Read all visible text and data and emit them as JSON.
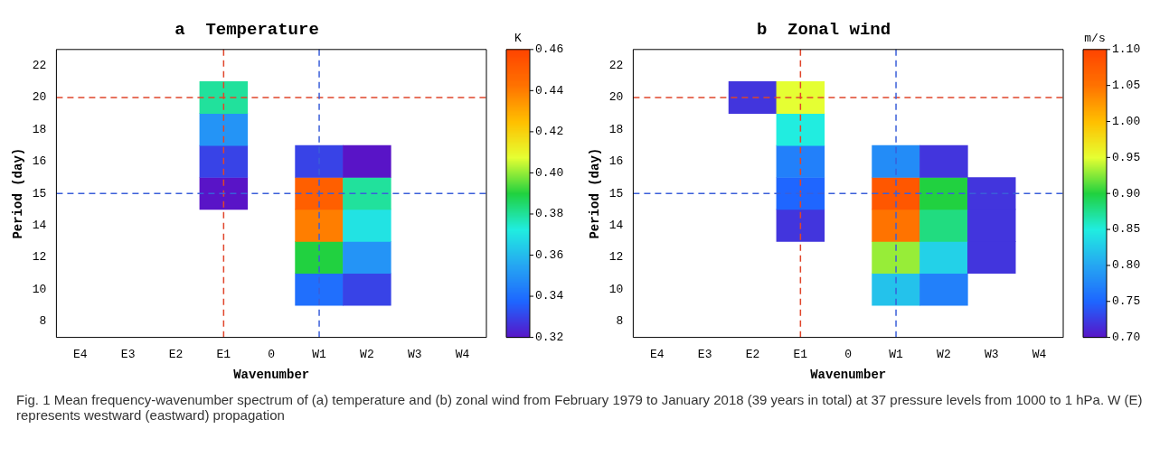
{
  "chart_data": [
    {
      "type": "heatmap",
      "title": "a  Temperature",
      "xlabel": "Wavenumber",
      "ylabel": "Period (day)",
      "clabel": "K",
      "categories": [
        "E4",
        "E3",
        "E2",
        "E1",
        "0",
        "W1",
        "W2",
        "W3",
        "W4"
      ],
      "y_categories": [
        "22",
        "20",
        "18",
        "16",
        "15",
        "14",
        "12",
        "10",
        "8"
      ],
      "cells": [
        [
          null,
          null,
          null,
          null,
          null,
          null,
          null,
          null,
          null
        ],
        [
          null,
          null,
          null,
          0.38,
          null,
          null,
          null,
          null,
          null
        ],
        [
          null,
          null,
          null,
          0.35,
          null,
          null,
          null,
          null,
          null
        ],
        [
          null,
          null,
          null,
          0.33,
          null,
          0.33,
          0.32,
          null,
          null
        ],
        [
          null,
          null,
          null,
          0.32,
          null,
          0.45,
          0.38,
          null,
          null
        ],
        [
          null,
          null,
          null,
          null,
          null,
          0.44,
          0.37,
          null,
          null
        ],
        [
          null,
          null,
          null,
          null,
          null,
          0.39,
          0.35,
          null,
          null
        ],
        [
          null,
          null,
          null,
          null,
          null,
          0.34,
          0.33,
          null,
          null
        ],
        [
          null,
          null,
          null,
          null,
          null,
          null,
          null,
          null,
          null
        ]
      ],
      "clim": [
        0.32,
        0.46
      ],
      "cticks": [
        {
          "value": 0.32,
          "label": "0.32"
        },
        {
          "value": 0.34,
          "label": "0.34"
        },
        {
          "value": 0.36,
          "label": "0.36"
        },
        {
          "value": 0.38,
          "label": "0.38"
        },
        {
          "value": 0.4,
          "label": "0.40"
        },
        {
          "value": 0.42,
          "label": "0.42"
        },
        {
          "value": 0.44,
          "label": "0.44"
        },
        {
          "value": 0.46,
          "label": "0.46"
        }
      ],
      "ref_lines": [
        {
          "axis": "y",
          "value": "20",
          "color": "#e0452b",
          "line_style": "dashed"
        },
        {
          "axis": "x",
          "value": "E1",
          "color": "#e0452b",
          "line_style": "dashed"
        },
        {
          "axis": "y",
          "value": "15",
          "color": "#3a5fd9",
          "line_style": "dashed"
        },
        {
          "axis": "x",
          "value": "W1",
          "color": "#3a5fd9",
          "line_style": "dashed"
        }
      ],
      "annotations": [
        "Fig. 1 Mean frequency-wavenumber spectrum of (a) temperature and (b) zonal wind from February 1979 to January 2018 (39 years in total) at 37 pressure levels from 1000 to 1 hPa. W (E) represents westward (eastward) propagation"
      ]
    },
    {
      "type": "heatmap",
      "title": "b  Zonal wind",
      "xlabel": "Wavenumber",
      "ylabel": "Period (day)",
      "clabel": "m/s",
      "categories": [
        "E4",
        "E3",
        "E2",
        "E1",
        "0",
        "W1",
        "W2",
        "W3",
        "W4"
      ],
      "y_categories": [
        "22",
        "20",
        "18",
        "16",
        "15",
        "14",
        "12",
        "10",
        "8"
      ],
      "cells": [
        [
          null,
          null,
          null,
          null,
          null,
          null,
          null,
          null,
          null
        ],
        [
          null,
          null,
          0.72,
          0.95,
          null,
          null,
          null,
          null,
          null
        ],
        [
          null,
          null,
          null,
          0.85,
          null,
          null,
          null,
          null,
          null
        ],
        [
          null,
          null,
          null,
          0.77,
          null,
          0.78,
          0.72,
          null,
          null
        ],
        [
          null,
          null,
          null,
          0.75,
          null,
          1.08,
          0.9,
          0.72,
          null
        ],
        [
          null,
          null,
          null,
          0.72,
          null,
          1.05,
          0.88,
          0.72,
          null
        ],
        [
          null,
          null,
          null,
          null,
          null,
          0.93,
          0.83,
          0.72,
          null
        ],
        [
          null,
          null,
          null,
          null,
          null,
          0.82,
          0.77,
          null,
          null
        ],
        [
          null,
          null,
          null,
          null,
          null,
          null,
          null,
          null,
          null
        ]
      ],
      "clim": [
        0.7,
        1.1
      ],
      "cticks": [
        {
          "value": 0.7,
          "label": "0.70"
        },
        0.75,
        {
          "value": 0.8,
          "label": "0.80"
        },
        0.85,
        {
          "value": 0.9,
          "label": "0.90"
        },
        0.95,
        {
          "value": 1,
          "label": "1.00"
        },
        1.05,
        {
          "value": 1.1,
          "label": "1.10"
        }
      ],
      "ref_lines": [
        {
          "axis": "y",
          "value": "20",
          "color": "#e0452b",
          "line_style": "dashed"
        },
        {
          "axis": "x",
          "value": "E1",
          "color": "#e0452b",
          "line_style": "dashed"
        },
        {
          "axis": "y",
          "value": "15",
          "color": "#3a5fd9",
          "line_style": "dashed"
        },
        {
          "axis": "x",
          "value": "W1",
          "color": "#3a5fd9",
          "line_style": "dashed"
        }
      ]
    }
  ]
}
